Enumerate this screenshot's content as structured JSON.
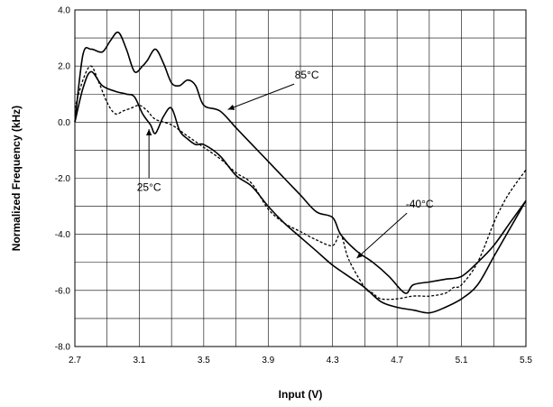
{
  "chart_data": {
    "type": "line",
    "title": "",
    "xlabel": "Input (V)",
    "ylabel": "Normalized Frequency (kHz)",
    "xlim": [
      2.7,
      5.5
    ],
    "ylim": [
      -8.0,
      4.0
    ],
    "grid": true,
    "xticks": [
      "2.7",
      "3.1",
      "3.5",
      "3.9",
      "4.3",
      "4.7",
      "5.1",
      "5.5"
    ],
    "xtick_values": [
      2.7,
      3.1,
      3.5,
      3.9,
      4.3,
      4.7,
      5.1,
      5.5
    ],
    "yticks": [
      "4.0",
      "2.0",
      "0.0",
      "-2.0",
      "-4.0",
      "-6.0",
      "-8.0"
    ],
    "ytick_values": [
      4.0,
      2.0,
      0.0,
      -2.0,
      -4.0,
      -6.0,
      -8.0
    ],
    "colors": {
      "line": "#000000",
      "grid": "#000000",
      "background": "#ffffff"
    },
    "series": [
      {
        "name": "85°C",
        "style": "solid",
        "x": [
          2.7,
          2.75,
          2.8,
          2.87,
          2.92,
          2.97,
          3.02,
          3.07,
          3.12,
          3.15,
          3.2,
          3.25,
          3.3,
          3.35,
          3.4,
          3.45,
          3.5,
          3.6,
          3.7,
          3.8,
          3.9,
          4.0,
          4.1,
          4.2,
          4.3,
          4.35,
          4.45,
          4.55,
          4.65,
          4.75,
          4.8,
          4.9,
          5.0,
          5.1,
          5.2,
          5.3,
          5.4,
          5.5
        ],
        "y": [
          0.0,
          2.4,
          2.6,
          2.5,
          2.9,
          3.2,
          2.6,
          1.8,
          2.0,
          2.2,
          2.6,
          2.1,
          1.4,
          1.3,
          1.5,
          1.3,
          0.6,
          0.4,
          -0.2,
          -0.8,
          -1.4,
          -2.0,
          -2.6,
          -3.2,
          -3.4,
          -4.0,
          -4.6,
          -5.0,
          -5.5,
          -6.1,
          -5.8,
          -5.7,
          -5.6,
          -5.5,
          -5.0,
          -4.4,
          -3.6,
          -2.8
        ]
      },
      {
        "name": "25°C",
        "style": "solid",
        "x": [
          2.7,
          2.75,
          2.8,
          2.87,
          2.95,
          3.02,
          3.07,
          3.12,
          3.17,
          3.2,
          3.25,
          3.3,
          3.35,
          3.4,
          3.45,
          3.5,
          3.6,
          3.7,
          3.8,
          3.9,
          4.0,
          4.1,
          4.2,
          4.3,
          4.4,
          4.5,
          4.6,
          4.7,
          4.8,
          4.9,
          5.0,
          5.1,
          5.2,
          5.3,
          5.4,
          5.5
        ],
        "y": [
          0.0,
          1.2,
          1.8,
          1.3,
          1.1,
          1.0,
          0.9,
          0.3,
          -0.1,
          -0.4,
          0.2,
          0.5,
          -0.3,
          -0.6,
          -0.8,
          -0.8,
          -1.2,
          -1.9,
          -2.3,
          -3.0,
          -3.6,
          -4.1,
          -4.6,
          -5.1,
          -5.5,
          -5.9,
          -6.4,
          -6.6,
          -6.7,
          -6.8,
          -6.6,
          -6.3,
          -5.8,
          -4.8,
          -3.8,
          -2.8
        ]
      },
      {
        "name": "-40°C",
        "style": "dashed",
        "x": [
          2.7,
          2.75,
          2.8,
          2.85,
          2.9,
          2.95,
          3.0,
          3.05,
          3.1,
          3.15,
          3.2,
          3.3,
          3.4,
          3.5,
          3.6,
          3.7,
          3.8,
          3.9,
          4.0,
          4.1,
          4.2,
          4.3,
          4.35,
          4.4,
          4.5,
          4.55,
          4.6,
          4.7,
          4.8,
          4.9,
          5.0,
          5.05,
          5.1,
          5.2,
          5.3,
          5.35,
          5.4,
          5.5
        ],
        "y": [
          0.5,
          1.5,
          2.0,
          1.4,
          0.7,
          0.3,
          0.4,
          0.5,
          0.6,
          0.4,
          0.1,
          -0.1,
          -0.5,
          -0.9,
          -1.3,
          -1.8,
          -2.2,
          -3.1,
          -3.6,
          -3.9,
          -4.2,
          -4.4,
          -4.0,
          -4.9,
          -5.9,
          -6.1,
          -6.3,
          -6.3,
          -6.2,
          -6.2,
          -6.1,
          -5.9,
          -5.8,
          -5.0,
          -3.6,
          -3.0,
          -2.5,
          -1.7
        ]
      }
    ],
    "annotations": [
      {
        "text": "85°C",
        "x": 4.14,
        "y": 1.55,
        "arrow_to": [
          3.65,
          0.45
        ]
      },
      {
        "text": "25°C",
        "x": 3.16,
        "y": -2.45,
        "arrow_to": [
          3.16,
          -0.25
        ]
      },
      {
        "text": "-40°C",
        "x": 4.84,
        "y": -3.05,
        "arrow_to": [
          4.45,
          -4.85
        ]
      }
    ]
  }
}
